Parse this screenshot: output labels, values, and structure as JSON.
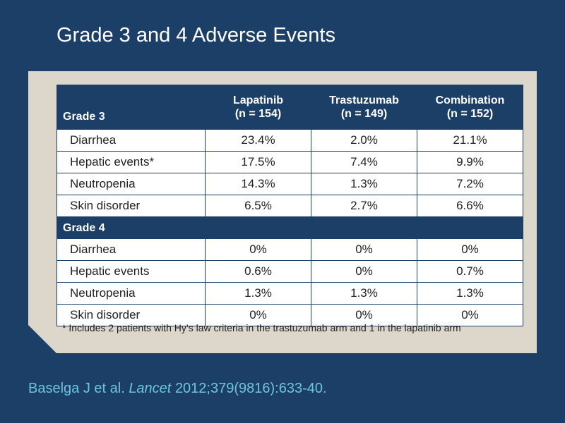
{
  "slide": {
    "title": "Grade 3 and 4 Adverse Events"
  },
  "table": {
    "header": {
      "first_col": "Grade 3",
      "columns": [
        {
          "name": "Lapatinib",
          "n": "(n = 154)"
        },
        {
          "name": "Trastuzumab",
          "n": "(n = 149)"
        },
        {
          "name": "Combination",
          "n": "(n = 152)"
        }
      ]
    },
    "grade3_rows": [
      {
        "label": "Diarrhea",
        "values": [
          "23.4%",
          "2.0%",
          "21.1%"
        ]
      },
      {
        "label": "Hepatic events*",
        "values": [
          "17.5%",
          "7.4%",
          "9.9%"
        ]
      },
      {
        "label": "Neutropenia",
        "values": [
          "14.3%",
          "1.3%",
          "7.2%"
        ]
      },
      {
        "label": "Skin disorder",
        "values": [
          "6.5%",
          "2.7%",
          "6.6%"
        ]
      }
    ],
    "grade4_label": "Grade 4",
    "grade4_rows": [
      {
        "label": "Diarrhea",
        "values": [
          "0%",
          "0%",
          "0%"
        ]
      },
      {
        "label": "Hepatic events",
        "values": [
          "0.6%",
          "0%",
          "0.7%"
        ]
      },
      {
        "label": "Neutropenia",
        "values": [
          "1.3%",
          "1.3%",
          "1.3%"
        ]
      },
      {
        "label": "Skin disorder",
        "values": [
          "0%",
          "0%",
          "0%"
        ]
      }
    ]
  },
  "footnote": "* Includes 2 patients with Hy’s law criteria in the trastuzumab arm and 1 in the lapatinib arm",
  "citation": {
    "authors": "Baselga J et al.",
    "journal": "Lancet",
    "details": "2012;379(9816):633-40."
  },
  "colors": {
    "background": "#1c3f68",
    "panel": "#ddd7cb",
    "citation": "#6ec4de"
  }
}
